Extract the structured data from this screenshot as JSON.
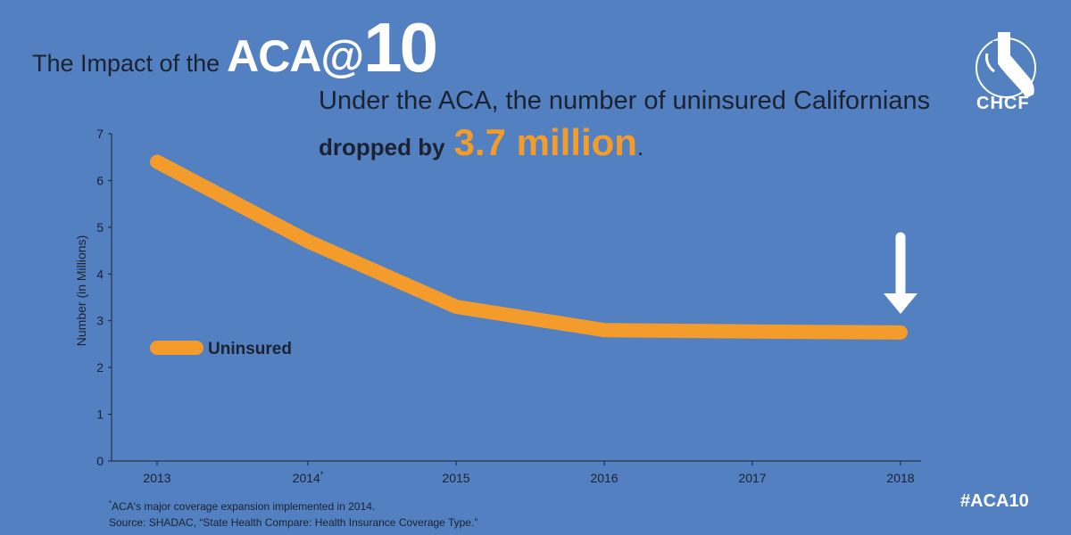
{
  "header": {
    "title_prefix": "The Impact of the",
    "title_brand": "ACA@",
    "title_number": "10",
    "headline_line1": "Under the ACA, the number of uninsured Californians",
    "headline_dropped": "dropped by",
    "headline_amount": "3.7 million",
    "headline_period": "."
  },
  "logo": {
    "text": "CHCF",
    "icon": "california-profile-logo-icon"
  },
  "hashtag": "#ACA10",
  "footnotes": {
    "line1_mark": "*",
    "line1": "ACA's major coverage expansion implemented in 2014.",
    "line2": "Source: SHADAC, “State Health Compare: Health Insurance Coverage Type.”"
  },
  "colors": {
    "background": "#5280c0",
    "line": "#f39b2b",
    "text_dark": "#1c2230",
    "white": "#ffffff"
  },
  "chart_data": {
    "type": "line",
    "title": "",
    "xlabel": "",
    "ylabel": "Number (in Millions)",
    "categories": [
      "2013",
      "2014",
      "2015",
      "2016",
      "2017",
      "2018"
    ],
    "category_marks": [
      "",
      "*",
      "",
      "",
      "",
      ""
    ],
    "ylim": [
      0,
      7
    ],
    "yticks": [
      "0",
      "1",
      "2",
      "3",
      "4",
      "5",
      "6",
      "7"
    ],
    "grid": false,
    "legend_position": "left",
    "series": [
      {
        "name": "Uninsured",
        "values": [
          6.4,
          4.7,
          3.3,
          2.8,
          2.77,
          2.75
        ]
      }
    ],
    "annotations": [
      {
        "type": "down-arrow",
        "target": "2018"
      }
    ]
  }
}
